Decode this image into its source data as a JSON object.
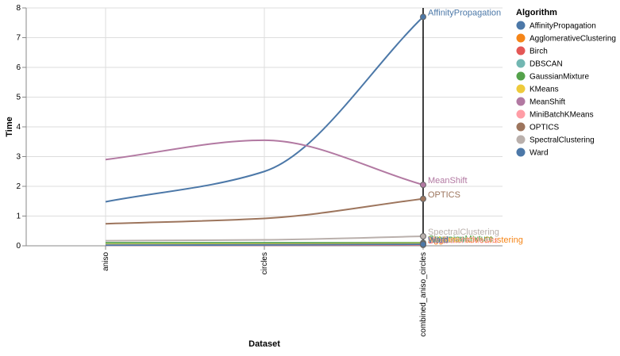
{
  "chart_data": {
    "type": "line",
    "xlabel": "Dataset",
    "ylabel": "Time",
    "categories": [
      "aniso",
      "circles",
      "combined_aniso_circles"
    ],
    "ylim": [
      0,
      8
    ],
    "yticks": [
      0,
      1,
      2,
      3,
      4,
      5,
      6,
      7,
      8
    ],
    "grid": true,
    "interpolation": "monotone",
    "legend": {
      "title": "Algorithm",
      "position": "right"
    },
    "rule": {
      "x": "combined_aniso_circles",
      "color": "#000000"
    },
    "series": [
      {
        "name": "AffinityPropagation",
        "color": "#4c78a8",
        "values": [
          1.48,
          2.5,
          7.7
        ]
      },
      {
        "name": "AgglomerativeClustering",
        "color": "#f58518",
        "values": [
          0.02,
          0.03,
          0.05
        ]
      },
      {
        "name": "Birch",
        "color": "#e45756",
        "values": [
          0.02,
          0.02,
          0.03
        ]
      },
      {
        "name": "DBSCAN",
        "color": "#72b7b2",
        "values": [
          0.03,
          0.04,
          0.06
        ]
      },
      {
        "name": "GaussianMixture",
        "color": "#54a24b",
        "values": [
          0.1,
          0.1,
          0.1
        ]
      },
      {
        "name": "KMeans",
        "color": "#eeca3b",
        "values": [
          0.04,
          0.05,
          0.07
        ]
      },
      {
        "name": "MeanShift",
        "color": "#b279a2",
        "values": [
          2.9,
          3.55,
          2.05
        ]
      },
      {
        "name": "MiniBatchKMeans",
        "color": "#ff9da6",
        "values": [
          0.02,
          0.03,
          0.04
        ]
      },
      {
        "name": "OPTICS",
        "color": "#9d755d",
        "values": [
          0.74,
          0.92,
          1.58
        ]
      },
      {
        "name": "SpectralClustering",
        "color": "#bab0ac",
        "values": [
          0.17,
          0.2,
          0.32
        ]
      },
      {
        "name": "Ward",
        "color": "#4c78a8",
        "values": [
          0.02,
          0.03,
          0.05
        ]
      }
    ]
  }
}
